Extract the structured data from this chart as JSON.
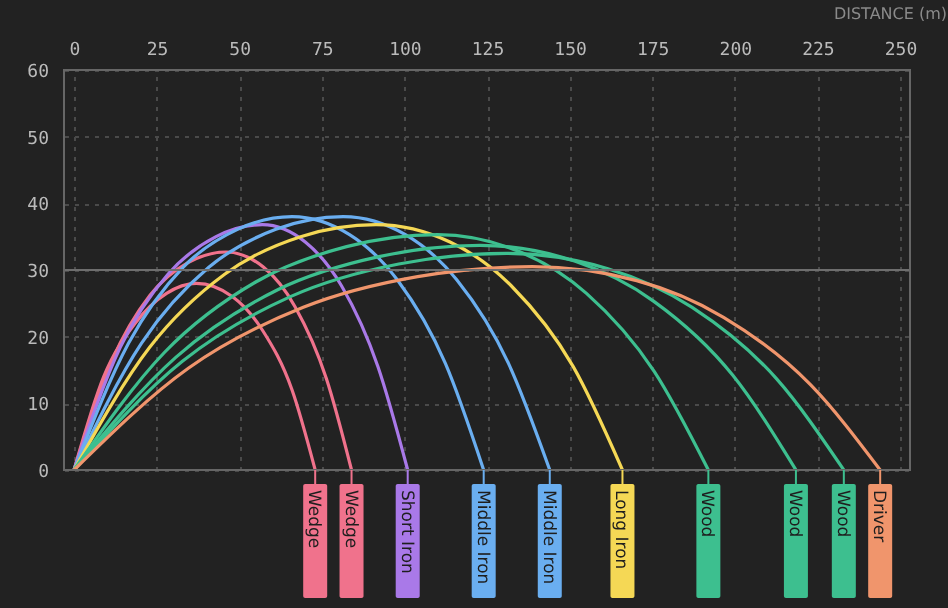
{
  "chart_data": {
    "type": "line",
    "xlabel": "DISTANCE (m)",
    "xlim": [
      0,
      250
    ],
    "xticks": [
      0,
      25,
      50,
      75,
      100,
      125,
      150,
      175,
      200,
      225,
      250
    ],
    "ylim": [
      0,
      60
    ],
    "yticks": [
      0,
      10,
      20,
      30,
      40,
      50,
      60
    ],
    "grid": true,
    "legend": "bottom",
    "line_style": "solid",
    "marker": "none",
    "ref_lines": [
      {
        "axis": "y",
        "value": 30,
        "color": "#6e6e6e",
        "line_style": "solid"
      }
    ],
    "series": [
      {
        "name": "Wedge",
        "color": "#f0728c",
        "x": [
          0,
          9,
          18.5,
          28,
          37,
          48,
          57,
          66,
          73
        ],
        "values": [
          0,
          14,
          22,
          26.5,
          28,
          26,
          21,
          12,
          0
        ]
      },
      {
        "name": "Wedge",
        "color": "#f0728c",
        "x": [
          0,
          11.5,
          23,
          34.5,
          46,
          57.4,
          66.9,
          76.4,
          84
        ],
        "values": [
          0,
          16.4,
          26.2,
          31.1,
          32.7,
          30.4,
          24.5,
          13.7,
          0
        ]
      },
      {
        "name": "Short Iron",
        "color": "#a979e8",
        "x": [
          0,
          14,
          28.5,
          43,
          57,
          70,
          81,
          92,
          101
        ],
        "values": [
          0,
          18.4,
          29.4,
          35,
          36.8,
          34.2,
          27.6,
          15.5,
          0
        ]
      },
      {
        "name": "Middle Iron",
        "color": "#6aaef0",
        "x": [
          0,
          16.5,
          33,
          49.5,
          66,
          83.4,
          97.9,
          112.4,
          124
        ],
        "values": [
          0,
          19,
          30.4,
          36.1,
          38,
          35.3,
          28.5,
          16,
          0
        ]
      },
      {
        "name": "Middle Iron",
        "color": "#6aaef0",
        "x": [
          0,
          20.4,
          40.8,
          61.1,
          81.5,
          100.3,
          115.9,
          131.5,
          144
        ],
        "values": [
          0,
          19,
          30.4,
          36.1,
          38,
          35.3,
          28.5,
          16,
          0
        ]
      },
      {
        "name": "Long Iron",
        "color": "#f5d855",
        "x": [
          0,
          22.9,
          45.7,
          68.6,
          91.4,
          113.8,
          132.4,
          151.1,
          166
        ],
        "values": [
          0,
          18.4,
          29.4,
          35,
          36.8,
          34.2,
          27.6,
          15.5,
          0
        ]
      },
      {
        "name": "Wood",
        "color": "#3dbf8f",
        "x": [
          0,
          27.5,
          55,
          82.5,
          110,
          134.6,
          155.1,
          175.6,
          192
        ],
        "values": [
          0,
          17.7,
          28.2,
          33.5,
          35.3,
          32.8,
          26.5,
          14.8,
          0
        ]
      },
      {
        "name": "Wood",
        "color": "#3dbf8f",
        "x": [
          0,
          30.8,
          61.5,
          92.3,
          123,
          151.7,
          175.5,
          199.4,
          218.5
        ],
        "values": [
          0,
          16.9,
          27,
          32,
          33.7,
          31.3,
          25.3,
          14.2,
          0
        ]
      },
      {
        "name": "Wood",
        "color": "#3dbf8f",
        "x": [
          0,
          32.8,
          65.5,
          98.3,
          131,
          161.6,
          187.1,
          212.6,
          233
        ],
        "values": [
          0,
          16.3,
          26,
          30.9,
          32.5,
          30.2,
          24.4,
          13.7,
          0
        ]
      },
      {
        "name": "Driver",
        "color": "#f0956c",
        "x": [
          0,
          34.7,
          69.4,
          104,
          138.7,
          170.3,
          196.6,
          222.9,
          244
        ],
        "values": [
          0,
          15.3,
          24.4,
          29,
          30.5,
          28.4,
          22.9,
          12.8,
          0
        ]
      }
    ]
  }
}
